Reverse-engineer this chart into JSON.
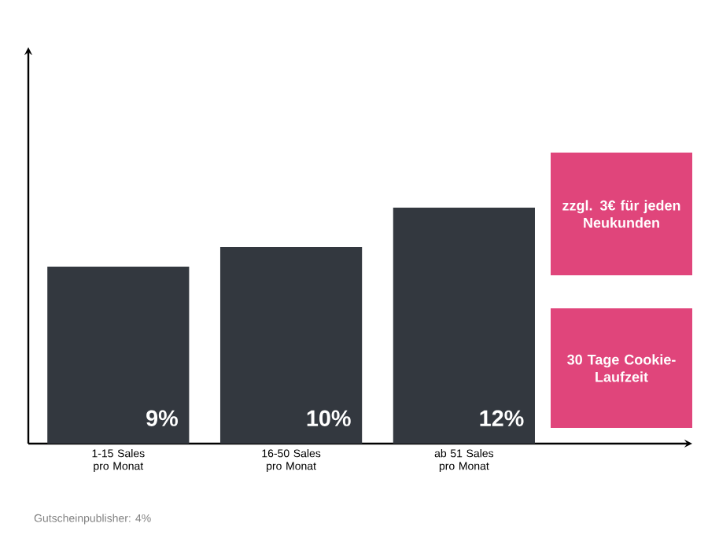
{
  "chart_data": {
    "type": "bar",
    "categories": [
      "1-15 Sales pro Monat",
      "16-50 Sales pro Monat",
      "ab 51 Sales pro Monat"
    ],
    "values": [
      9,
      10,
      12
    ],
    "value_labels": [
      "9%",
      "10%",
      "12%"
    ],
    "color": "#33383f",
    "annotations": [
      "zzgl. **3€** für jeden Neukunden",
      "**30** Tage Cookie-Laufzeit",
      "Gutscheinpublisher: 4%"
    ]
  }
}
